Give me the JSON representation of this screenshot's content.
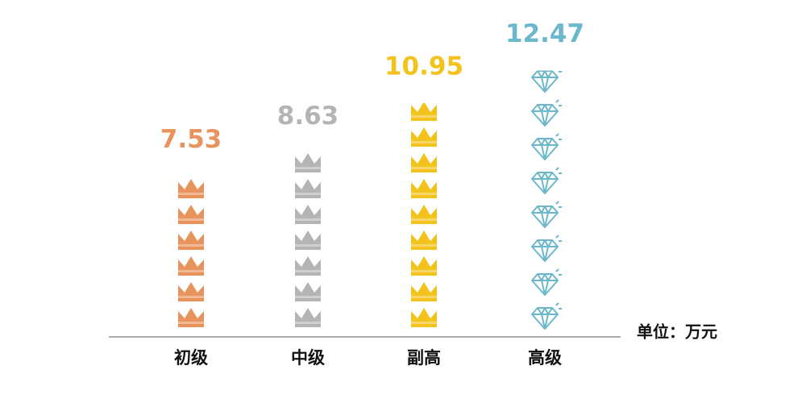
{
  "chart_data": {
    "type": "bar",
    "categories": [
      "初级",
      "中级",
      "副高",
      "高级"
    ],
    "values": [
      7.53,
      8.63,
      10.95,
      12.47
    ],
    "colors": [
      "#e8935c",
      "#b4b4b4",
      "#f3c21c",
      "#6bb8cc"
    ],
    "unit_label": "单位：万元"
  }
}
